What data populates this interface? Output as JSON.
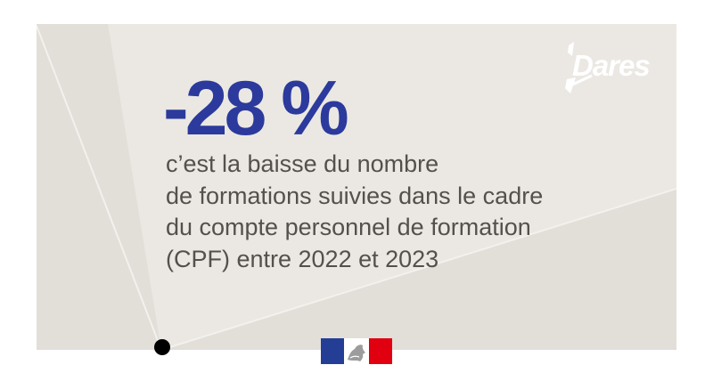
{
  "headline": {
    "value": "-28 %"
  },
  "caption": {
    "lines": [
      "c’est la baisse du nombre",
      "de formations suivies dans le cadre",
      "du compte personnel de formation",
      "(CPF) entre 2022 et 2023"
    ]
  },
  "logo": {
    "text": "Dares"
  },
  "footer": {
    "dot_icon": "black-dot-icon",
    "flag_icon": "marianne-flag-icon"
  },
  "colors": {
    "card_background": "#ebe8e3",
    "card_shade": "#e2ded8",
    "headline": "#2b3a9c",
    "caption": "#54514c",
    "logo": "#ffffff",
    "dot": "#000000",
    "flag_blue": "#233e94",
    "flag_red": "#e1000f"
  }
}
